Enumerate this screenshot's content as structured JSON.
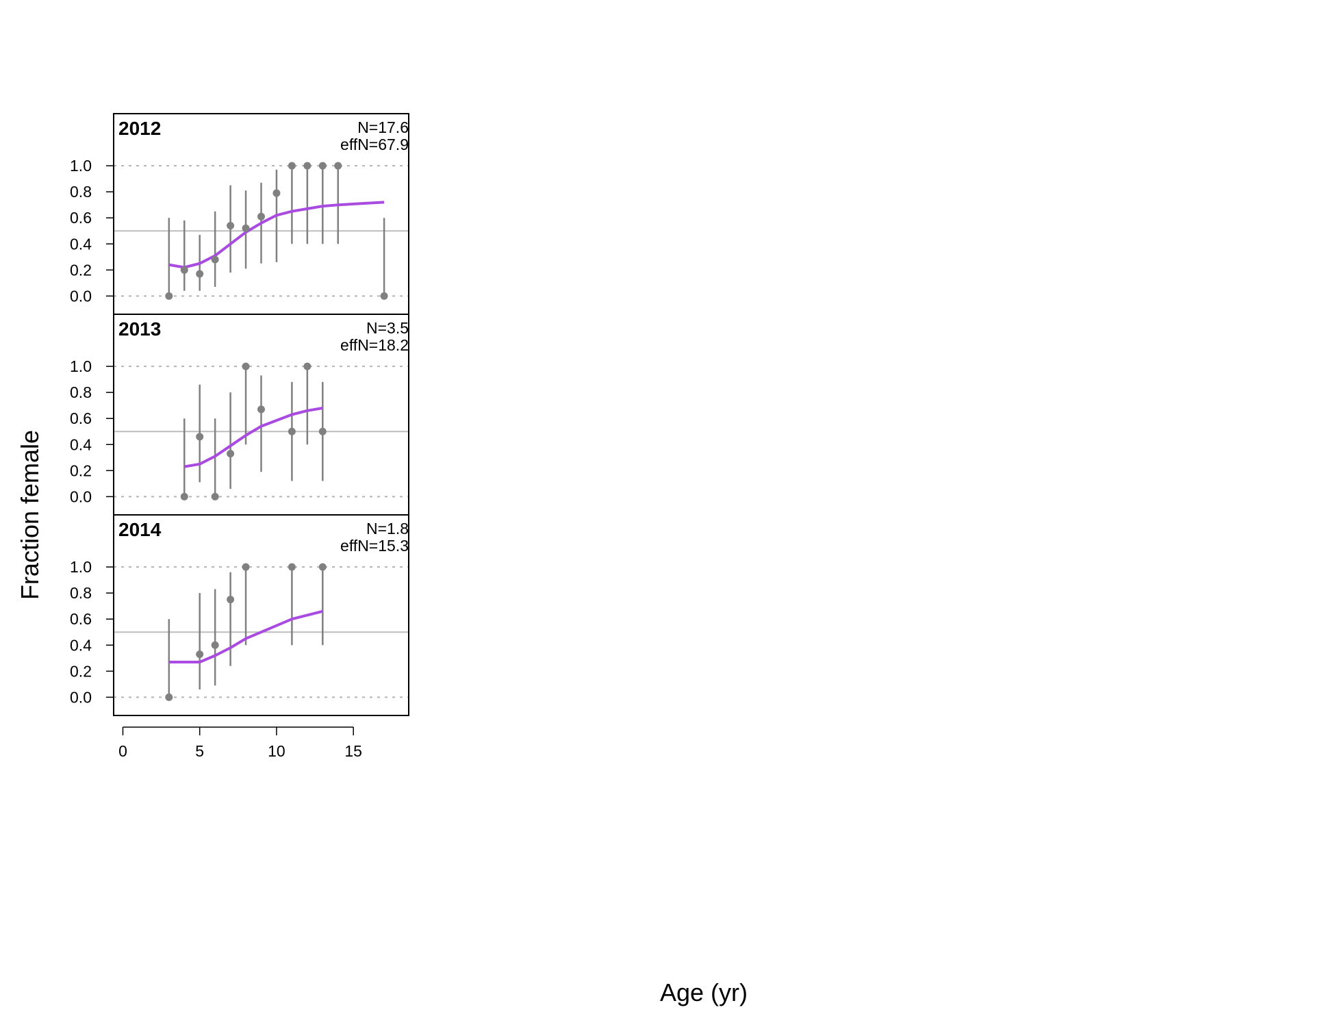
{
  "chart_data": {
    "type": "scatter",
    "ylabel": "Fraction female",
    "xlabel": "Age (yr)",
    "xlim": [
      -0.6,
      18.6
    ],
    "ylim": [
      -0.14,
      1.4
    ],
    "x_ticks": [
      0,
      5,
      10,
      15
    ],
    "y_ticks": [
      0.0,
      0.2,
      0.4,
      0.6,
      0.8,
      1.0
    ],
    "y_tick_labels": [
      "0.0",
      "0.2",
      "0.4",
      "0.6",
      "0.8",
      "1.0"
    ],
    "reference_line_y": 0.5,
    "dashed_lines_y": [
      0.0,
      1.0
    ],
    "colors": {
      "observed": "#808080",
      "expected": "#a94be0",
      "reference": "#bdbdbd",
      "dashed": "#b3b3b3"
    },
    "panels": [
      {
        "label": "2012",
        "n_label": "N=17.6",
        "effn_label": "effN=67.9",
        "observed": [
          {
            "x": 3,
            "y": 0.0,
            "lo": 0.0,
            "hi": 0.6
          },
          {
            "x": 4,
            "y": 0.2,
            "lo": 0.04,
            "hi": 0.58
          },
          {
            "x": 5,
            "y": 0.17,
            "lo": 0.04,
            "hi": 0.47
          },
          {
            "x": 6,
            "y": 0.28,
            "lo": 0.07,
            "hi": 0.65
          },
          {
            "x": 7,
            "y": 0.54,
            "lo": 0.18,
            "hi": 0.85
          },
          {
            "x": 8,
            "y": 0.52,
            "lo": 0.21,
            "hi": 0.81
          },
          {
            "x": 9,
            "y": 0.61,
            "lo": 0.25,
            "hi": 0.87
          },
          {
            "x": 10,
            "y": 0.79,
            "lo": 0.26,
            "hi": 0.97
          },
          {
            "x": 11,
            "y": 1.0,
            "lo": 0.4,
            "hi": 1.0
          },
          {
            "x": 12,
            "y": 1.0,
            "lo": 0.4,
            "hi": 1.0
          },
          {
            "x": 13,
            "y": 1.0,
            "lo": 0.4,
            "hi": 1.0
          },
          {
            "x": 14,
            "y": 1.0,
            "lo": 0.4,
            "hi": 1.0
          },
          {
            "x": 17,
            "y": 0.0,
            "lo": 0.0,
            "hi": 0.6
          }
        ],
        "expected": [
          {
            "x": 3,
            "y": 0.24
          },
          {
            "x": 4,
            "y": 0.22
          },
          {
            "x": 5,
            "y": 0.25
          },
          {
            "x": 6,
            "y": 0.31
          },
          {
            "x": 7,
            "y": 0.4
          },
          {
            "x": 8,
            "y": 0.49
          },
          {
            "x": 9,
            "y": 0.56
          },
          {
            "x": 10,
            "y": 0.62
          },
          {
            "x": 11,
            "y": 0.65
          },
          {
            "x": 12,
            "y": 0.67
          },
          {
            "x": 13,
            "y": 0.69
          },
          {
            "x": 14,
            "y": 0.7
          },
          {
            "x": 17,
            "y": 0.72
          }
        ]
      },
      {
        "label": "2013",
        "n_label": "N=3.5",
        "effn_label": "effN=18.2",
        "observed": [
          {
            "x": 4,
            "y": 0.0,
            "lo": 0.0,
            "hi": 0.6
          },
          {
            "x": 5,
            "y": 0.46,
            "lo": 0.11,
            "hi": 0.86
          },
          {
            "x": 6,
            "y": 0.0,
            "lo": 0.0,
            "hi": 0.6
          },
          {
            "x": 7,
            "y": 0.33,
            "lo": 0.06,
            "hi": 0.8
          },
          {
            "x": 8,
            "y": 1.0,
            "lo": 0.4,
            "hi": 1.0
          },
          {
            "x": 9,
            "y": 0.67,
            "lo": 0.19,
            "hi": 0.93
          },
          {
            "x": 11,
            "y": 0.5,
            "lo": 0.12,
            "hi": 0.88
          },
          {
            "x": 12,
            "y": 1.0,
            "lo": 0.4,
            "hi": 1.0
          },
          {
            "x": 13,
            "y": 0.5,
            "lo": 0.12,
            "hi": 0.88
          }
        ],
        "expected": [
          {
            "x": 4,
            "y": 0.23
          },
          {
            "x": 5,
            "y": 0.25
          },
          {
            "x": 6,
            "y": 0.31
          },
          {
            "x": 7,
            "y": 0.39
          },
          {
            "x": 8,
            "y": 0.47
          },
          {
            "x": 9,
            "y": 0.54
          },
          {
            "x": 11,
            "y": 0.63
          },
          {
            "x": 12,
            "y": 0.66
          },
          {
            "x": 13,
            "y": 0.68
          }
        ]
      },
      {
        "label": "2014",
        "n_label": "N=1.8",
        "effn_label": "effN=15.3",
        "observed": [
          {
            "x": 3,
            "y": 0.0,
            "lo": 0.0,
            "hi": 0.6
          },
          {
            "x": 5,
            "y": 0.33,
            "lo": 0.06,
            "hi": 0.8
          },
          {
            "x": 6,
            "y": 0.4,
            "lo": 0.09,
            "hi": 0.83
          },
          {
            "x": 7,
            "y": 0.75,
            "lo": 0.24,
            "hi": 0.96
          },
          {
            "x": 8,
            "y": 1.0,
            "lo": 0.4,
            "hi": 1.0
          },
          {
            "x": 11,
            "y": 1.0,
            "lo": 0.4,
            "hi": 1.0
          },
          {
            "x": 13,
            "y": 1.0,
            "lo": 0.4,
            "hi": 1.0
          }
        ],
        "expected": [
          {
            "x": 3,
            "y": 0.27
          },
          {
            "x": 5,
            "y": 0.27
          },
          {
            "x": 6,
            "y": 0.32
          },
          {
            "x": 7,
            "y": 0.38
          },
          {
            "x": 8,
            "y": 0.45
          },
          {
            "x": 11,
            "y": 0.6
          },
          {
            "x": 13,
            "y": 0.66
          }
        ]
      }
    ]
  }
}
